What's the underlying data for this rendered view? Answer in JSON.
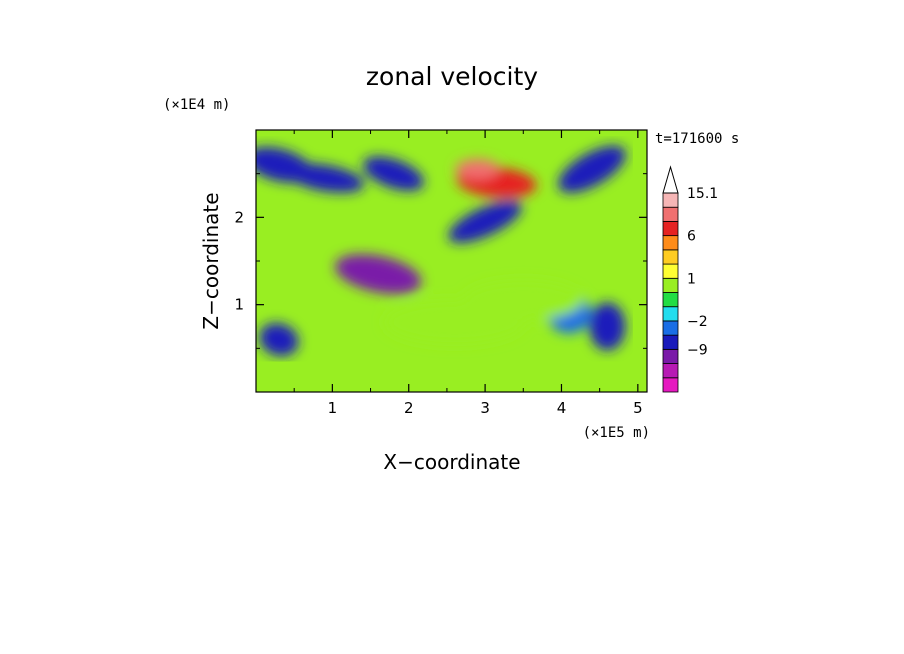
{
  "chart_data": {
    "type": "heatmap",
    "title": "zonal velocity",
    "xlabel": "X−coordinate",
    "ylabel": "Z−coordinate",
    "x_unit": "(×1E5 m)",
    "y_unit": "(×1E4 m)",
    "time_label": "t=171600 s",
    "x_ticks": [
      "1",
      "2",
      "3",
      "4",
      "5"
    ],
    "y_ticks": [
      "1",
      "2"
    ],
    "xlim": [
      0,
      5.12
    ],
    "ylim": [
      0,
      3.0
    ],
    "colorbar": {
      "levels": [
        -16,
        -12,
        -9,
        -6,
        -2,
        -1,
        0,
        1,
        2,
        4,
        6,
        9,
        12,
        15.1
      ],
      "colors": [
        "#e619c0",
        "#b71ab4",
        "#7a1aa8",
        "#1a1abb",
        "#1a6ee6",
        "#22ddee",
        "#22dd44",
        "#99ee22",
        "#ffff33",
        "#ffcc22",
        "#ff8c1a",
        "#e62222",
        "#f07070",
        "#f6b6b6"
      ],
      "tick_labels": [
        "15.1",
        "6",
        "1",
        "−2",
        "−9"
      ],
      "tick_values": [
        15.1,
        6,
        1,
        -2,
        -9
      ],
      "overflow_arrow": "top"
    },
    "features": [
      {
        "x": 0.3,
        "z": 2.6,
        "value": -6
      },
      {
        "x": 0.9,
        "z": 2.45,
        "value": -6
      },
      {
        "x": 1.8,
        "z": 2.5,
        "value": -6
      },
      {
        "x": 1.6,
        "z": 1.35,
        "value": -9
      },
      {
        "x": 3.0,
        "z": 1.95,
        "value": -6
      },
      {
        "x": 4.4,
        "z": 2.55,
        "value": -6
      },
      {
        "x": 3.15,
        "z": 2.4,
        "value": 9
      },
      {
        "x": 2.9,
        "z": 2.55,
        "value": 12
      },
      {
        "x": 4.6,
        "z": 0.75,
        "value": -6
      },
      {
        "x": 4.1,
        "z": 0.9,
        "value": -2
      },
      {
        "x": 0.3,
        "z": 0.6,
        "value": -6
      },
      {
        "x": 2.6,
        "z": 0.8,
        "value": 1
      },
      {
        "x": 3.5,
        "z": 1.05,
        "value": 1
      }
    ]
  }
}
